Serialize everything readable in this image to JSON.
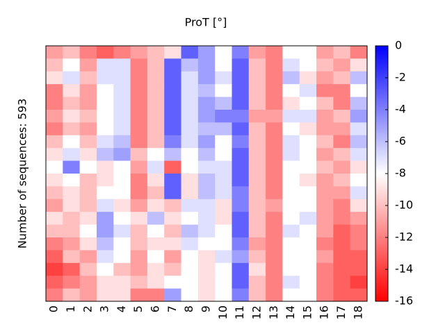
{
  "chart_data": {
    "type": "heatmap",
    "title": "ProT [°]",
    "ylabel": "Number of sequences: 593",
    "categories": [
      "0",
      "1",
      "2",
      "3",
      "4",
      "5",
      "6",
      "7",
      "8",
      "9",
      "10",
      "11",
      "12",
      "13",
      "14",
      "15",
      "16",
      "17",
      "18"
    ],
    "values": [
      [
        -11,
        -10,
        -12,
        -13,
        -12,
        -11,
        -10,
        -9,
        -3,
        -5,
        -8,
        -4,
        -11,
        -12,
        -8,
        -8,
        -11,
        -10,
        -12
      ],
      [
        -10,
        -8,
        -11,
        -7,
        -7,
        -12,
        -10,
        -3,
        -6,
        -5,
        -8,
        -3,
        -10,
        -12,
        -7,
        -8,
        -10,
        -11,
        -9
      ],
      [
        -9,
        -7,
        -10,
        -7,
        -7,
        -12,
        -10,
        -3,
        -7,
        -5,
        -7,
        -3,
        -10,
        -12,
        -6,
        -9,
        -11,
        -10,
        -6
      ],
      [
        -12,
        -9,
        -11,
        -8,
        -7,
        -12,
        -10,
        -3,
        -7,
        -6,
        -8,
        -3,
        -10,
        -12,
        -8,
        -7,
        -12,
        -12,
        -8
      ],
      [
        -12,
        -10,
        -11,
        -8,
        -7,
        -12,
        -10,
        -3,
        -7,
        -5,
        -6,
        -3,
        -10,
        -12,
        -9,
        -8,
        -10,
        -12,
        -6
      ],
      [
        -11,
        -9,
        -10,
        -8,
        -7,
        -12,
        -10,
        -3,
        -7,
        -5,
        -4,
        -4,
        -11,
        -11,
        -7,
        -7,
        -11,
        -10,
        -5
      ],
      [
        -12,
        -10,
        -11,
        -8,
        -7,
        -12,
        -10,
        -3,
        -7,
        -6,
        -6,
        -3,
        -10,
        -12,
        -8,
        -9,
        -11,
        -11,
        -7
      ],
      [
        -10,
        -8,
        -10,
        -7,
        -6,
        -12,
        -10,
        -4,
        -7,
        -5,
        -8,
        -4,
        -10,
        -12,
        -7,
        -8,
        -10,
        -12,
        -6
      ],
      [
        -9,
        -7,
        -9,
        -6,
        -5,
        -10,
        -8,
        -6,
        -8,
        -6,
        -8,
        -3,
        -10,
        -12,
        -7,
        -8,
        -11,
        -10,
        -7
      ],
      [
        -8,
        -4,
        -8,
        -9,
        -8,
        -11,
        -7,
        -13,
        -8,
        -7,
        -7,
        -3,
        -10,
        -12,
        -8,
        -8,
        -10,
        -11,
        -9
      ],
      [
        -9,
        -8,
        -10,
        -9,
        -8,
        -12,
        -9,
        -3,
        -9,
        -6,
        -7,
        -3,
        -10,
        -12,
        -8,
        -9,
        -11,
        -10,
        -8
      ],
      [
        -10,
        -9,
        -10,
        -8,
        -8,
        -12,
        -10,
        -3,
        -9,
        -6,
        -7,
        -4,
        -10,
        -12,
        -8,
        -8,
        -11,
        -11,
        -7
      ],
      [
        -11,
        -9,
        -10,
        -7,
        -9,
        -11,
        -9,
        -10,
        -7,
        -7,
        -9,
        -4,
        -10,
        -11,
        -8,
        -8,
        -11,
        -12,
        -9
      ],
      [
        -9,
        -10,
        -9,
        -5,
        -8,
        -9,
        -6,
        -9,
        -8,
        -7,
        -9,
        -3,
        -10,
        -12,
        -8,
        -7,
        -11,
        -12,
        -11
      ],
      [
        -10,
        -10,
        -8,
        -5,
        -7,
        -10,
        -8,
        -10,
        -6,
        -7,
        -8,
        -3,
        -10,
        -12,
        -7,
        -8,
        -11,
        -13,
        -12
      ],
      [
        -12,
        -11,
        -9,
        -6,
        -8,
        -10,
        -9,
        -9,
        -7,
        -8,
        -8,
        -4,
        -11,
        -12,
        -8,
        -8,
        -12,
        -13,
        -12
      ],
      [
        -13,
        -10,
        -11,
        -7,
        -8,
        -11,
        -8,
        -11,
        -8,
        -9,
        -7,
        -5,
        -10,
        -12,
        -8,
        -8,
        -11,
        -13,
        -13
      ],
      [
        -14,
        -13,
        -10,
        -8,
        -10,
        -11,
        -9,
        -10,
        -8,
        -9,
        -8,
        -3,
        -9,
        -12,
        -8,
        -8,
        -12,
        -13,
        -13
      ],
      [
        -13,
        -12,
        -11,
        -9,
        -9,
        -10,
        -9,
        -8,
        -8,
        -9,
        -8,
        -3,
        -10,
        -12,
        -7,
        -8,
        -12,
        -13,
        -14
      ],
      [
        -12,
        -10,
        -11,
        -9,
        -9,
        -12,
        -12,
        -5,
        -8,
        -9,
        -8,
        -4,
        -10,
        -12,
        -8,
        -8,
        -12,
        -13,
        -13
      ]
    ],
    "colormap": [
      "#ff0000",
      "#ffffff",
      "#0000ff"
    ],
    "clim": [
      -16,
      0
    ],
    "cticks": [
      0,
      -2,
      -4,
      -6,
      -8,
      -10,
      -12,
      -14,
      -16
    ]
  }
}
